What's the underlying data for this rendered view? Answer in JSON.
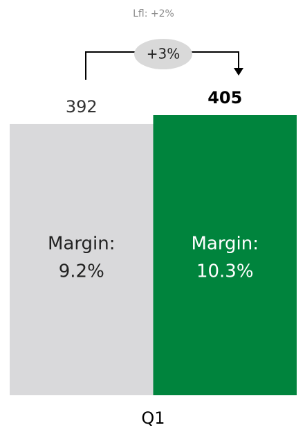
{
  "chart_data": {
    "type": "bar",
    "categories": [
      "Q1"
    ],
    "series": [
      {
        "color": "#d9d9db",
        "values": [
          392
        ],
        "margin_label": [
          "Margin:",
          "9.2%"
        ]
      },
      {
        "color": "#00843d",
        "values": [
          405
        ],
        "margin_label": [
          "Margin:",
          "10.3%"
        ]
      }
    ],
    "annotations": {
      "lfl": "Lfl: +2%",
      "change": "+3%"
    }
  }
}
